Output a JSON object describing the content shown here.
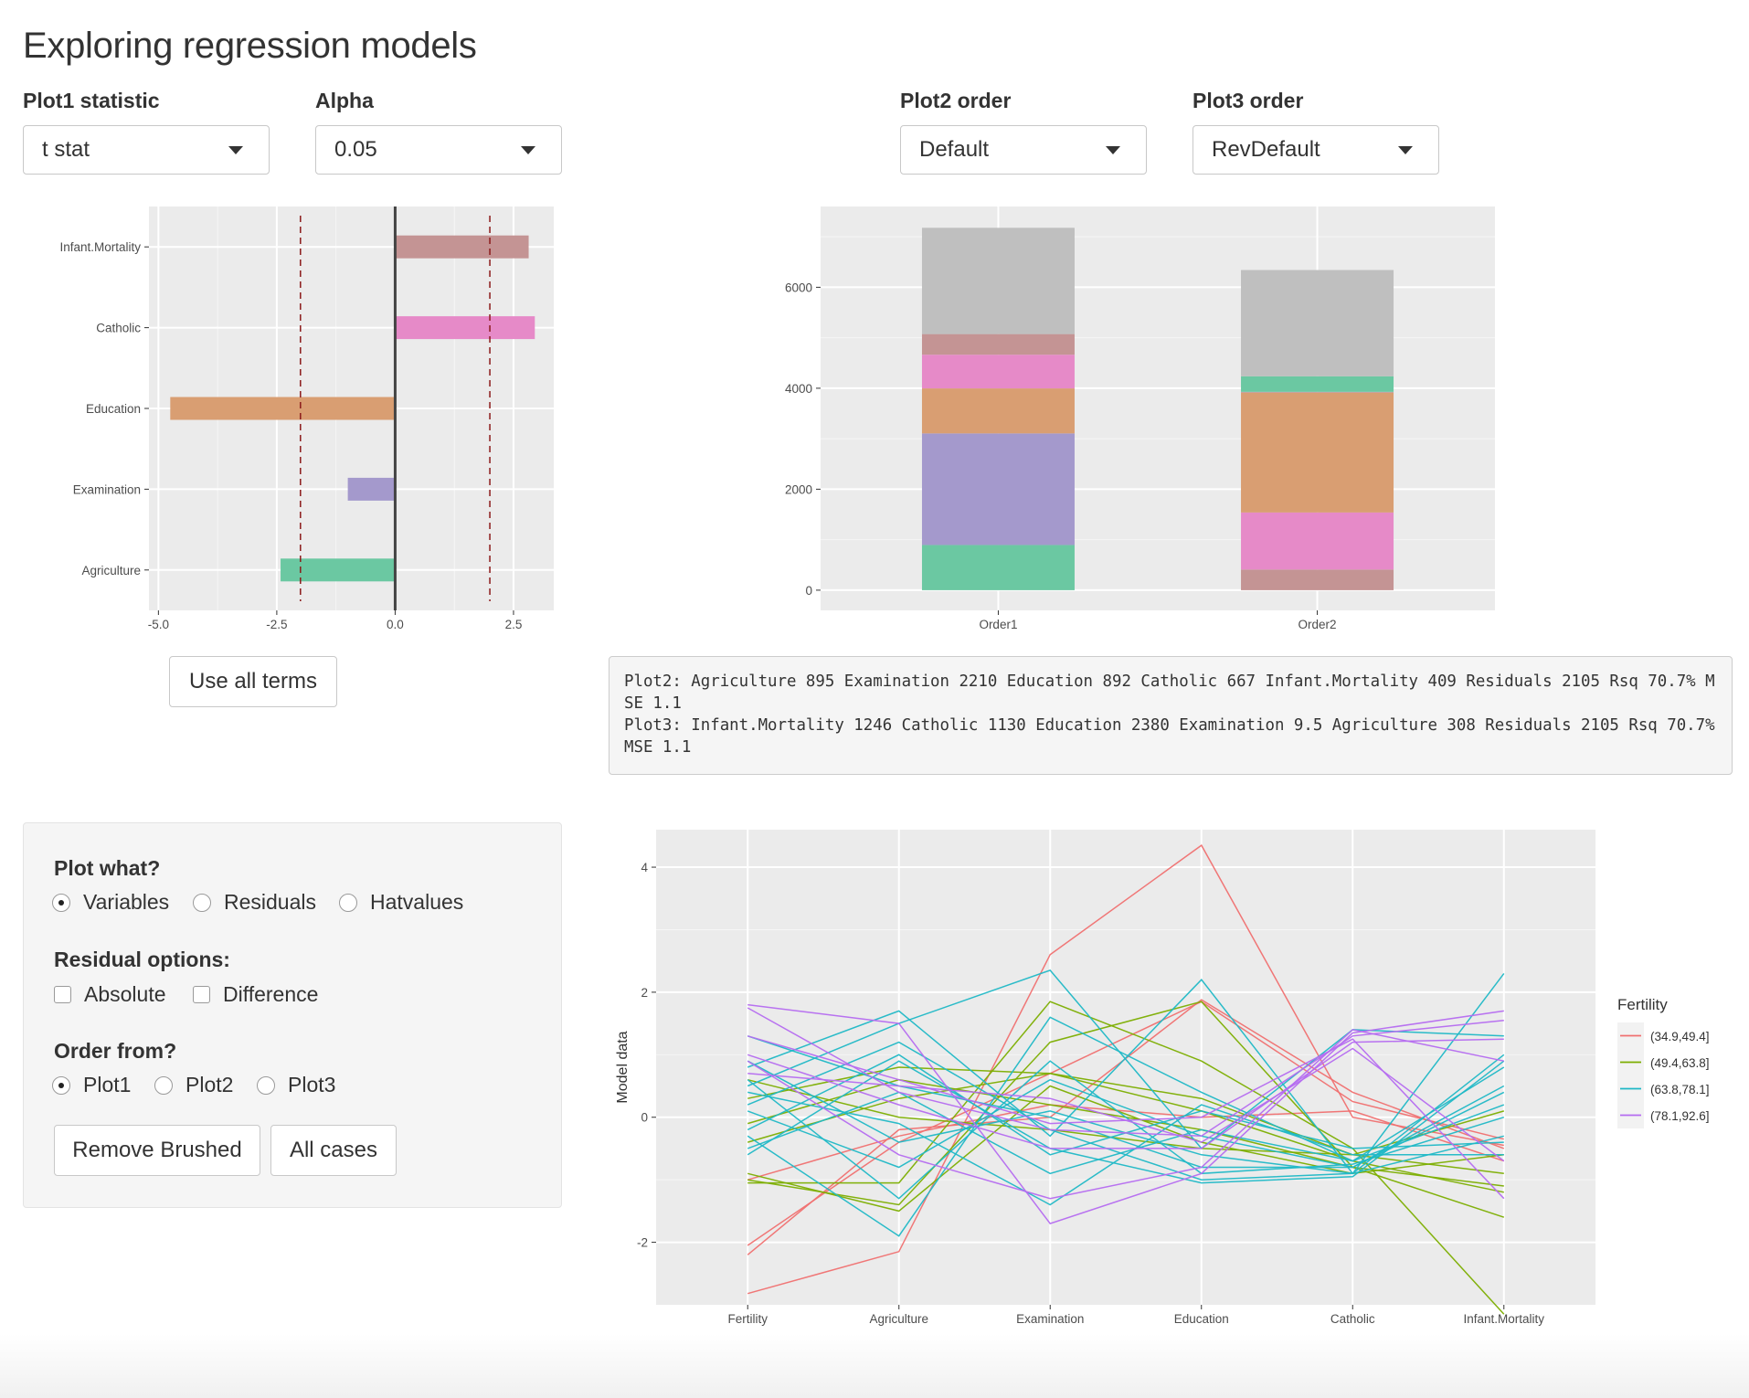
{
  "title": "Exploring regression models",
  "controls": {
    "plot1_statistic": {
      "label": "Plot1 statistic",
      "value": "t stat"
    },
    "alpha": {
      "label": "Alpha",
      "value": "0.05"
    },
    "plot2_order": {
      "label": "Plot2 order",
      "value": "Default"
    },
    "plot3_order": {
      "label": "Plot3 order",
      "value": "RevDefault"
    }
  },
  "use_all_terms_label": "Use all terms",
  "summary_text": "Plot2: Agriculture 895 Examination 2210 Education 892 Catholic 667 Infant.Mortality 409 Residuals 2105 Rsq 70.7% MSE 1.1\nPlot3: Infant.Mortality 1246 Catholic 1130 Education 2380 Examination 9.5 Agriculture 308 Residuals 2105 Rsq 70.7% MSE 1.1",
  "panel": {
    "plot_what": {
      "label": "Plot what?",
      "options": [
        "Variables",
        "Residuals",
        "Hatvalues"
      ],
      "selected": "Variables"
    },
    "residual_options": {
      "label": "Residual options:",
      "options": [
        "Absolute",
        "Difference"
      ]
    },
    "order_from": {
      "label": "Order from?",
      "options": [
        "Plot1",
        "Plot2",
        "Plot3"
      ],
      "selected": "Plot1"
    },
    "remove_brushed_label": "Remove Brushed",
    "all_cases_label": "All cases"
  },
  "chart_data": [
    {
      "type": "bar",
      "orientation": "horizontal",
      "categories": [
        "Infant.Mortality",
        "Catholic",
        "Education",
        "Examination",
        "Agriculture"
      ],
      "values": [
        2.82,
        2.95,
        -4.75,
        -1.0,
        -2.42
      ],
      "colors": [
        "#c49494",
        "#e68ac8",
        "#d99e72",
        "#a499cc",
        "#6bc8a2"
      ],
      "xlim": [
        -5.2,
        3.35
      ],
      "xticks": [
        "-5.0",
        "-2.5",
        "0.0",
        "2.5"
      ],
      "reference_lines": [
        -2.0,
        2.0
      ]
    },
    {
      "type": "bar",
      "stacked": true,
      "categories": [
        "Order1",
        "Order2"
      ],
      "series": [
        {
          "values": [
            895,
            409
          ],
          "colors": [
            "#6bc8a2",
            "#c49494"
          ]
        },
        {
          "values": [
            2210,
            1130
          ],
          "colors": [
            "#a499cc",
            "#e68ac8"
          ]
        },
        {
          "values": [
            892,
            2380
          ],
          "colors": [
            "#d99e72",
            "#d99e72"
          ]
        },
        {
          "values": [
            667,
            9.5
          ],
          "colors": [
            "#e68ac8",
            "#a499cc"
          ]
        },
        {
          "values": [
            409,
            308
          ],
          "colors": [
            "#c49494",
            "#6bc8a2"
          ]
        },
        {
          "values": [
            2105,
            2105
          ],
          "colors": [
            "#bfbfbf",
            "#bfbfbf"
          ]
        }
      ],
      "ylim": [
        0,
        7200
      ],
      "yticks": [
        "0",
        "2000",
        "4000",
        "6000"
      ]
    },
    {
      "type": "line",
      "subtype": "parallel-coordinates",
      "categories": [
        "Fertility",
        "Agriculture",
        "Examination",
        "Education",
        "Catholic",
        "Infant.Mortality"
      ],
      "ylabel": "Model data",
      "ylim": [
        -3.0,
        4.6
      ],
      "yticks": [
        "-2",
        "0",
        "2",
        "4"
      ],
      "legend": {
        "title": "Fertility",
        "position": "right",
        "entries": [
          {
            "name": "(34.9,49.4]",
            "color": "#f07070"
          },
          {
            "name": "(49.4,63.8]",
            "color": "#7cae00"
          },
          {
            "name": "(63.8,78.1]",
            "color": "#1fb8c6"
          },
          {
            "name": "(78.1,92.6]",
            "color": "#b56bf0"
          }
        ]
      },
      "series": [
        {
          "group": 0,
          "values": [
            -2.82,
            -2.15,
            2.6,
            4.35,
            0.0,
            -0.45
          ]
        },
        {
          "group": 0,
          "values": [
            -2.2,
            -0.2,
            0.0,
            1.88,
            0.4,
            -0.5
          ]
        },
        {
          "group": 0,
          "values": [
            -2.05,
            -0.4,
            0.7,
            1.85,
            0.25,
            -0.35
          ]
        },
        {
          "group": 0,
          "values": [
            -1.0,
            -0.3,
            0.2,
            0.0,
            0.1,
            -0.7
          ]
        },
        {
          "group": 1,
          "values": [
            -1.05,
            -1.05,
            1.85,
            0.9,
            -0.5,
            -3.15
          ]
        },
        {
          "group": 1,
          "values": [
            -1.0,
            -1.4,
            1.2,
            1.85,
            -0.8,
            -1.6
          ]
        },
        {
          "group": 1,
          "values": [
            -0.4,
            0.3,
            0.7,
            0.1,
            -0.7,
            -1.2
          ]
        },
        {
          "group": 1,
          "values": [
            -0.1,
            0.6,
            0.2,
            -0.2,
            -0.8,
            -1.1
          ]
        },
        {
          "group": 1,
          "values": [
            0.3,
            0.8,
            0.7,
            0.3,
            -0.6,
            -0.9
          ]
        },
        {
          "group": 1,
          "values": [
            -0.9,
            -1.5,
            0.5,
            -0.4,
            -0.9,
            -0.6
          ]
        },
        {
          "group": 1,
          "values": [
            0.6,
            0.0,
            -0.2,
            -0.5,
            -0.6,
            0.1
          ]
        },
        {
          "group": 2,
          "values": [
            0.8,
            1.7,
            -0.3,
            2.2,
            -0.9,
            2.3
          ]
        },
        {
          "group": 2,
          "values": [
            0.5,
            1.5,
            2.35,
            -0.5,
            1.4,
            1.3
          ]
        },
        {
          "group": 2,
          "values": [
            0.2,
            1.2,
            -0.2,
            -1.0,
            -0.9,
            1.0
          ]
        },
        {
          "group": 2,
          "values": [
            -0.3,
            -1.9,
            1.6,
            0.4,
            -0.7,
            0.8
          ]
        },
        {
          "group": 2,
          "values": [
            0.1,
            -0.8,
            0.6,
            -0.3,
            -0.8,
            0.4
          ]
        },
        {
          "group": 2,
          "values": [
            -0.5,
            0.4,
            -0.9,
            -0.2,
            -0.7,
            0.2
          ]
        },
        {
          "group": 2,
          "values": [
            0.9,
            -0.4,
            0.1,
            -0.6,
            -0.9,
            -0.3
          ]
        },
        {
          "group": 2,
          "values": [
            -0.6,
            0.9,
            -0.5,
            -1.05,
            -0.95,
            0.9
          ]
        },
        {
          "group": 2,
          "values": [
            0.4,
            -0.1,
            -1.4,
            0.2,
            -0.6,
            -0.6
          ]
        },
        {
          "group": 2,
          "values": [
            1.3,
            0.5,
            0.0,
            -0.8,
            -0.8,
            0.5
          ]
        },
        {
          "group": 2,
          "values": [
            -0.2,
            1.0,
            -0.6,
            0.1,
            -0.5,
            -0.4
          ]
        },
        {
          "group": 2,
          "values": [
            0.6,
            -1.3,
            0.9,
            -0.9,
            -0.75,
            0.0
          ]
        },
        {
          "group": 3,
          "values": [
            1.8,
            1.5,
            -1.7,
            -0.9,
            1.35,
            1.7
          ]
        },
        {
          "group": 3,
          "values": [
            1.75,
            0.4,
            -0.2,
            -0.3,
            1.3,
            1.55
          ]
        },
        {
          "group": 3,
          "values": [
            1.0,
            0.2,
            -0.5,
            -0.5,
            1.2,
            1.25
          ]
        },
        {
          "group": 3,
          "values": [
            0.9,
            -0.6,
            -1.3,
            -0.8,
            1.4,
            0.9
          ]
        },
        {
          "group": 3,
          "values": [
            1.3,
            0.6,
            -0.1,
            0.0,
            1.25,
            -1.3
          ]
        },
        {
          "group": 3,
          "values": [
            0.7,
            0.5,
            0.3,
            -0.4,
            1.1,
            -0.7
          ]
        }
      ]
    }
  ]
}
